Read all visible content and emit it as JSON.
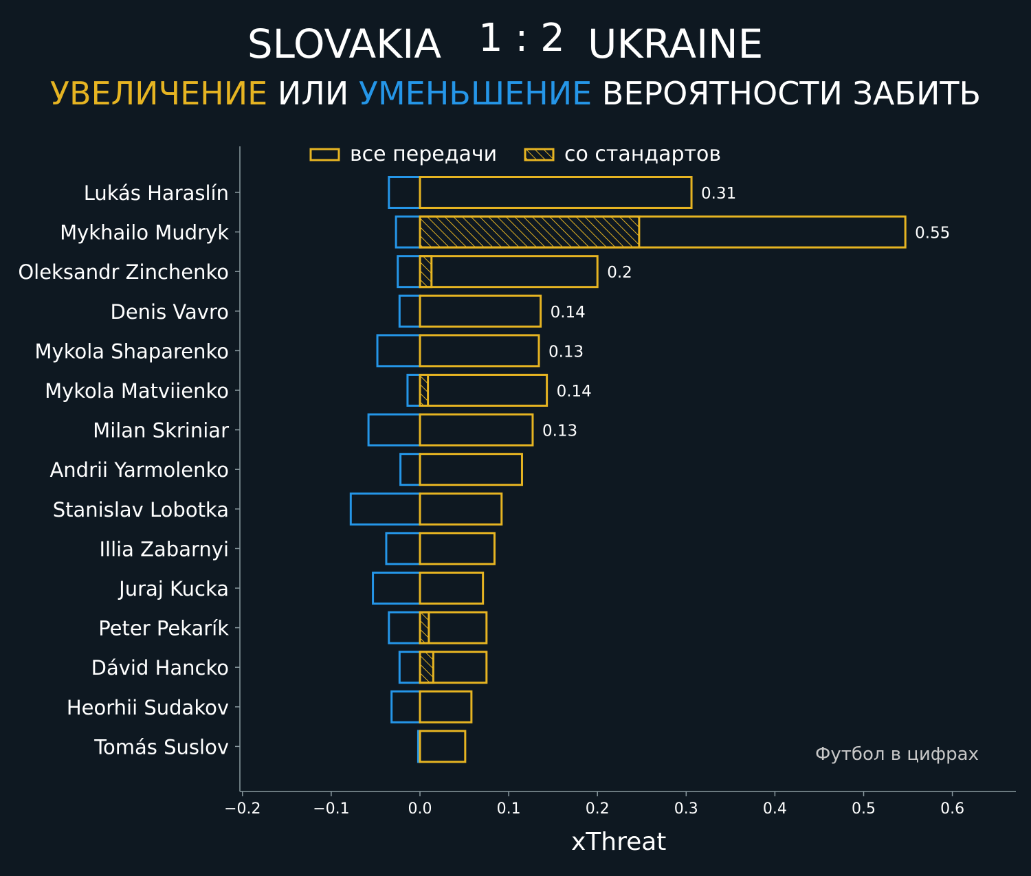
{
  "header": {
    "team_home": "SLOVAKIA",
    "score": "1 : 2",
    "team_away": "UKRAINE",
    "subtitle_parts": {
      "up": "УВЕЛИЧЕНИЕ",
      "or": "ИЛИ",
      "down": "УМЕНЬШЕНИЕ",
      "rest": "ВЕРОЯТНОСТИ ЗАБИТЬ"
    }
  },
  "colors": {
    "background": "#0e1821",
    "positive": "#e6b422",
    "negative": "#2596e8",
    "axis": "#8a9aa0",
    "text": "#ffffff",
    "watermark": "#c8c8c8"
  },
  "watermark": "Футбол в цифрах",
  "chart_data": {
    "type": "bar",
    "orientation": "horizontal",
    "xlabel": "xThreat",
    "xlim": [
      -0.2,
      0.67
    ],
    "xticks": [
      -0.2,
      -0.1,
      0.0,
      0.1,
      0.2,
      0.3,
      0.4,
      0.5,
      0.6
    ],
    "xtick_labels": [
      "−0.2",
      "−0.1",
      "0.0",
      "0.1",
      "0.2",
      "0.3",
      "0.4",
      "0.5",
      "0.6"
    ],
    "legend": {
      "placement": "top-center",
      "entries": [
        {
          "label": "все передачи",
          "style": "outline"
        },
        {
          "label": "со стандартов",
          "style": "hatched"
        }
      ]
    },
    "categories": [
      "Lukás Haraslín",
      "Mykhailo Mudryk",
      "Oleksandr Zinchenko",
      "Denis Vavro",
      "Mykola Shaparenko",
      "Mykola Matviienko",
      "Milan Skriniar",
      "Andrii Yarmolenko",
      "Stanislav Lobotka",
      "Illia Zabarnyi",
      "Juraj Kucka",
      "Peter Pekarík",
      "Dávid Hancko",
      "Heorhii Sudakov",
      "Tomás Suslov"
    ],
    "series": [
      {
        "name": "все передачи",
        "role": "positive",
        "values": [
          0.306,
          0.547,
          0.2,
          0.136,
          0.134,
          0.143,
          0.127,
          0.115,
          0.092,
          0.084,
          0.071,
          0.075,
          0.075,
          0.058,
          0.051
        ]
      },
      {
        "name": "со стандартов",
        "role": "positive-set-pieces",
        "values": [
          0,
          0.247,
          0.013,
          0,
          0,
          0.009,
          0,
          0,
          0,
          0,
          0,
          0.01,
          0.015,
          0,
          0
        ]
      },
      {
        "role": "negative",
        "values": [
          -0.035,
          -0.027,
          -0.025,
          -0.023,
          -0.048,
          -0.014,
          -0.058,
          -0.022,
          -0.078,
          -0.038,
          -0.053,
          -0.035,
          -0.023,
          -0.032,
          -0.002
        ]
      }
    ],
    "value_labels": [
      "0.31",
      "0.55",
      "0.2",
      "0.14",
      "0.13",
      "0.14",
      "0.13",
      "",
      "",
      "",
      "",
      "",
      "",
      "",
      ""
    ]
  }
}
